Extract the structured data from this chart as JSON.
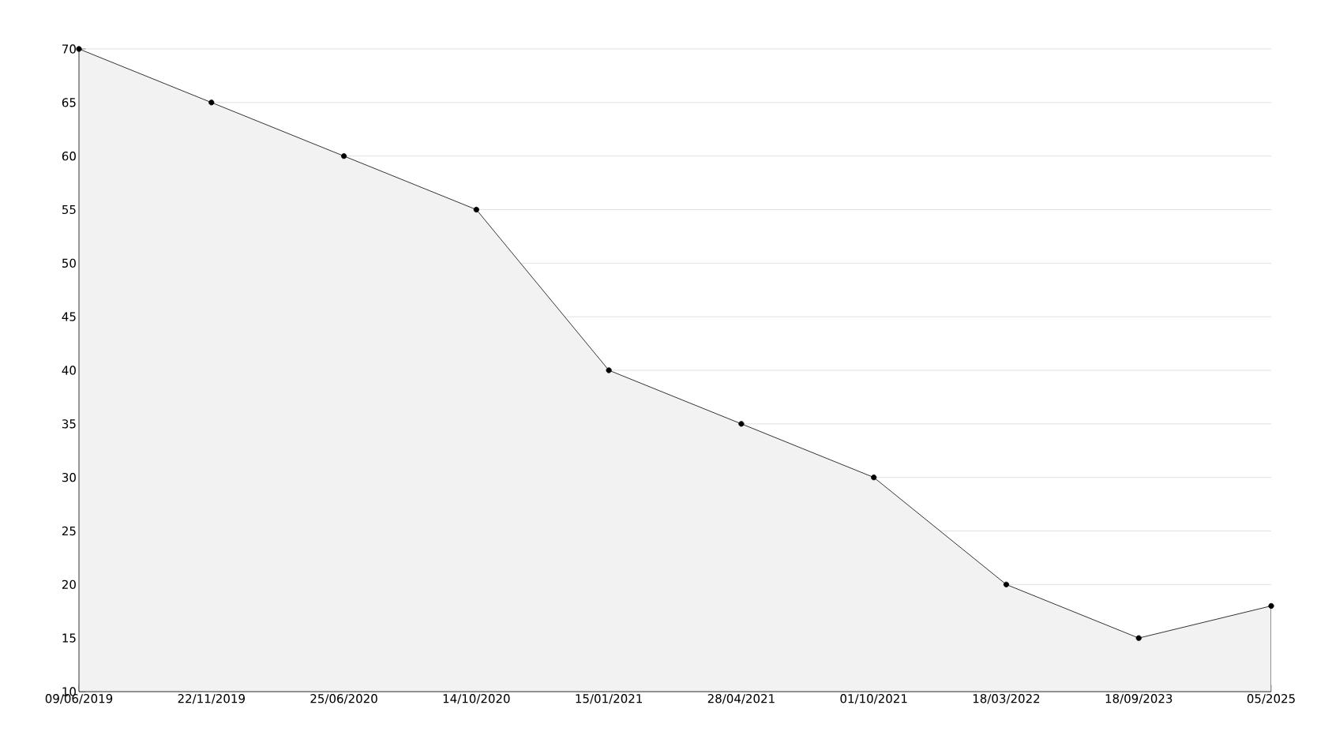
{
  "chart_data": {
    "type": "area",
    "categories": [
      "09/06/2019",
      "22/11/2019",
      "25/06/2020",
      "14/10/2020",
      "15/01/2021",
      "28/04/2021",
      "01/10/2021",
      "18/03/2022",
      "18/09/2023",
      "05/2025"
    ],
    "values": [
      70,
      65,
      60,
      55,
      40,
      35,
      30,
      20,
      15,
      18
    ],
    "color": "#f2f2f2",
    "ylim": [
      10,
      70
    ],
    "yticks": [
      10,
      15,
      20,
      25,
      30,
      35,
      40,
      45,
      50,
      55,
      60,
      65,
      70
    ],
    "grid": "y",
    "marker": "circle",
    "line_style": "solid"
  }
}
